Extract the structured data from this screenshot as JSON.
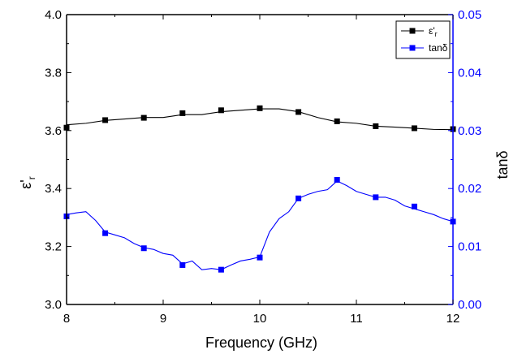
{
  "chart_data": {
    "type": "line",
    "xlabel": "Frequency (GHz)",
    "ylabel_left_main": "ε'",
    "ylabel_left_sub": "r",
    "ylabel_right": "tanδ",
    "xlim": [
      8,
      12
    ],
    "ylim_left": [
      3.0,
      4.0
    ],
    "ylim_right": [
      0.0,
      0.05
    ],
    "x_ticks": [
      "8",
      "9",
      "10",
      "11",
      "12"
    ],
    "y_left_ticks": [
      "3.0",
      "3.2",
      "3.4",
      "3.6",
      "3.8",
      "4.0"
    ],
    "y_right_ticks": [
      "0.00",
      "0.01",
      "0.02",
      "0.03",
      "0.04",
      "0.05"
    ],
    "legend_placement": "top-right",
    "colors": {
      "permittivity": "#000000",
      "loss": "#0000ff"
    },
    "series": [
      {
        "name_main": "ε'",
        "name_sub": "r",
        "axis": "left",
        "color": "#000000",
        "x": [
          8.0,
          8.2,
          8.4,
          8.6,
          8.8,
          9.0,
          9.2,
          9.4,
          9.6,
          9.8,
          10.0,
          10.2,
          10.4,
          10.6,
          10.8,
          11.0,
          11.2,
          11.4,
          11.6,
          11.8,
          12.0
        ],
        "y": [
          3.62,
          3.625,
          3.635,
          3.64,
          3.645,
          3.645,
          3.655,
          3.655,
          3.665,
          3.67,
          3.675,
          3.675,
          3.665,
          3.645,
          3.63,
          3.625,
          3.615,
          3.612,
          3.608,
          3.604,
          3.603
        ],
        "markers_x": [
          8.0,
          8.4,
          8.8,
          9.2,
          9.6,
          10.0,
          10.4,
          10.8,
          11.2,
          11.6,
          12.0
        ],
        "markers_y": [
          3.61,
          3.636,
          3.644,
          3.66,
          3.67,
          3.677,
          3.664,
          3.632,
          3.615,
          3.608,
          3.605
        ]
      },
      {
        "name": "tanδ",
        "axis": "right",
        "color": "#0000ff",
        "x": [
          8.0,
          8.1,
          8.2,
          8.3,
          8.4,
          8.5,
          8.6,
          8.7,
          8.8,
          8.9,
          9.0,
          9.1,
          9.2,
          9.3,
          9.4,
          9.5,
          9.6,
          9.7,
          9.8,
          9.9,
          10.0,
          10.1,
          10.2,
          10.3,
          10.4,
          10.5,
          10.6,
          10.7,
          10.8,
          10.9,
          11.0,
          11.1,
          11.2,
          11.3,
          11.4,
          11.5,
          11.6,
          11.7,
          11.8,
          11.9,
          12.0
        ],
        "y": [
          0.0155,
          0.0158,
          0.016,
          0.0145,
          0.0125,
          0.012,
          0.0115,
          0.0105,
          0.0098,
          0.0095,
          0.0088,
          0.0085,
          0.007,
          0.0075,
          0.006,
          0.0062,
          0.006,
          0.0068,
          0.0075,
          0.0078,
          0.0082,
          0.0125,
          0.0148,
          0.016,
          0.0183,
          0.019,
          0.0195,
          0.0198,
          0.0213,
          0.0205,
          0.0195,
          0.019,
          0.0185,
          0.0185,
          0.018,
          0.017,
          0.0165,
          0.016,
          0.0155,
          0.0148,
          0.0143
        ],
        "markers_x": [
          8.0,
          8.4,
          8.8,
          9.2,
          9.6,
          10.0,
          10.4,
          10.8,
          11.2,
          11.6,
          12.0
        ],
        "markers_y": [
          0.0152,
          0.0123,
          0.0097,
          0.0068,
          0.006,
          0.0081,
          0.0183,
          0.0215,
          0.0185,
          0.0169,
          0.0143
        ]
      }
    ]
  }
}
